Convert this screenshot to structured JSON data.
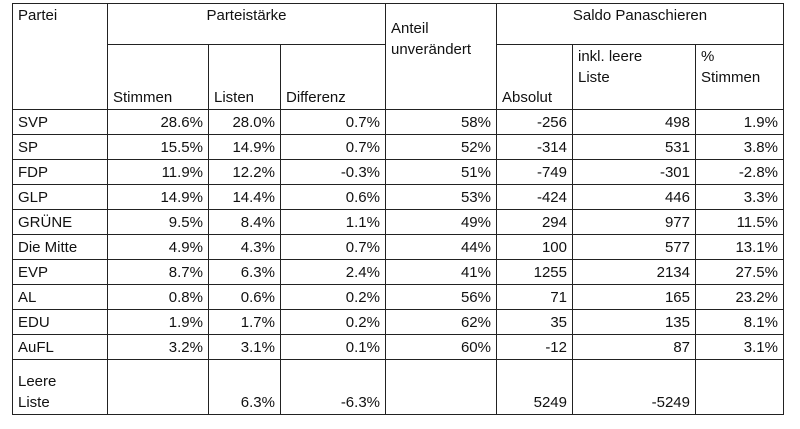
{
  "header": {
    "partei": "Partei",
    "parteistaerke": "Parteistärke",
    "stimmen": "Stimmen",
    "listen": "Listen",
    "differenz": "Differenz",
    "anteil": "Anteil\nunverändert",
    "saldo": "Saldo Panaschieren",
    "absolut": "Absolut",
    "inkl": "inkl. leere\nListe",
    "prozent_stimmen": "%\nStimmen"
  },
  "table": {
    "rows": [
      [
        "SVP",
        "28.6%",
        "28.0%",
        "0.7%",
        "58%",
        "-256",
        "498",
        "1.9%"
      ],
      [
        "SP",
        "15.5%",
        "14.9%",
        "0.7%",
        "52%",
        "-314",
        "531",
        "3.8%"
      ],
      [
        "FDP",
        "11.9%",
        "12.2%",
        "-0.3%",
        "51%",
        "-749",
        "-301",
        "-2.8%"
      ],
      [
        "GLP",
        "14.9%",
        "14.4%",
        "0.6%",
        "53%",
        "-424",
        "446",
        "3.3%"
      ],
      [
        "GRÜNE",
        "9.5%",
        "8.4%",
        "1.1%",
        "49%",
        "294",
        "977",
        "11.5%"
      ],
      [
        "Die Mitte",
        "4.9%",
        "4.3%",
        "0.7%",
        "44%",
        "100",
        "577",
        "13.1%"
      ],
      [
        "EVP",
        "8.7%",
        "6.3%",
        "2.4%",
        "41%",
        "1255",
        "2134",
        "27.5%"
      ],
      [
        "AL",
        "0.8%",
        "0.6%",
        "0.2%",
        "56%",
        "71",
        "165",
        "23.2%"
      ],
      [
        "EDU",
        "1.9%",
        "1.7%",
        "0.2%",
        "62%",
        "35",
        "135",
        "8.1%"
      ],
      [
        "AuFL",
        "3.2%",
        "3.1%",
        "0.1%",
        "60%",
        "-12",
        "87",
        "3.1%"
      ],
      [
        "Leere\nListe",
        null,
        "6.3%",
        "-6.3%",
        null,
        "5249",
        "-5249",
        null
      ]
    ]
  }
}
